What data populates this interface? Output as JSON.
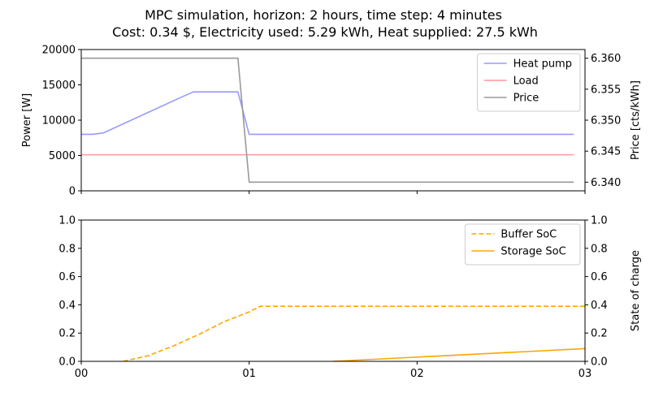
{
  "chart_data": {
    "type": "line",
    "title_line1": "MPC simulation, horizon: 2 hours, time step: 4 minutes",
    "title_line2": "Cost: 0.34 $, Electricity used: 5.29 kWh, Heat supplied: 27.5 kWh",
    "x_ticks": [
      "00",
      "01",
      "02",
      "03"
    ],
    "xlim": [
      0,
      3
    ],
    "panels": [
      {
        "ylabel_left": "Power [W]",
        "ylabel_right": "Price [cts/kWh]",
        "ylim_left": [
          0,
          20000
        ],
        "ylim_right": [
          6.3386,
          6.3614
        ],
        "yticks_left": [
          "0",
          "5000",
          "10000",
          "15000",
          "20000"
        ],
        "yticks_left_values": [
          0,
          5000,
          10000,
          15000,
          20000
        ],
        "yticks_right": [
          "6.340",
          "6.345",
          "6.350",
          "6.355",
          "6.360"
        ],
        "yticks_right_values": [
          6.34,
          6.345,
          6.35,
          6.355,
          6.36
        ],
        "legend_position": "top-right",
        "series": [
          {
            "name": "Heat pump",
            "axis": "left",
            "color": "#9999ff",
            "style": "solid",
            "x": [
              0,
              0.067,
              0.133,
              0.6,
              0.667,
              0.933,
              1.0,
              2.933
            ],
            "y": [
              8000,
              8000,
              8200,
              13300,
              14000,
              14000,
              8000,
              8000
            ]
          },
          {
            "name": "Load",
            "axis": "left",
            "color": "#ff9999",
            "style": "solid",
            "x": [
              0,
              2.933
            ],
            "y": [
              5100,
              5100
            ]
          },
          {
            "name": "Price",
            "axis": "right",
            "color": "#999999",
            "style": "solid",
            "x": [
              0,
              0.933,
              1.0,
              2.933
            ],
            "y": [
              6.36,
              6.36,
              6.34,
              6.34
            ]
          }
        ]
      },
      {
        "ylabel_left": "",
        "ylabel_right": "State of charge",
        "ylim_left": [
          0,
          1
        ],
        "ylim_right": [
          0,
          1
        ],
        "yticks_left": [
          "0.0",
          "0.2",
          "0.4",
          "0.6",
          "0.8",
          "1.0"
        ],
        "yticks_left_values": [
          0,
          0.2,
          0.4,
          0.6,
          0.8,
          1.0
        ],
        "yticks_right": [
          "0.0",
          "0.2",
          "0.4",
          "0.6",
          "0.8",
          "1.0"
        ],
        "yticks_right_values": [
          0,
          0.2,
          0.4,
          0.6,
          0.8,
          1.0
        ],
        "legend_position": "top-right",
        "series": [
          {
            "name": "Buffer SoC",
            "axis": "left",
            "color": "#ffa500",
            "style": "dashed",
            "x": [
              0.25,
              0.4,
              0.55,
              0.7,
              0.85,
              1.0,
              1.067,
              3.0
            ],
            "y": [
              0.0,
              0.04,
              0.11,
              0.19,
              0.28,
              0.35,
              0.39,
              0.39
            ]
          },
          {
            "name": "Storage SoC",
            "axis": "left",
            "color": "#ffa500",
            "style": "solid",
            "x": [
              1.5,
              3.0
            ],
            "y": [
              0.0,
              0.09
            ]
          }
        ]
      }
    ]
  }
}
